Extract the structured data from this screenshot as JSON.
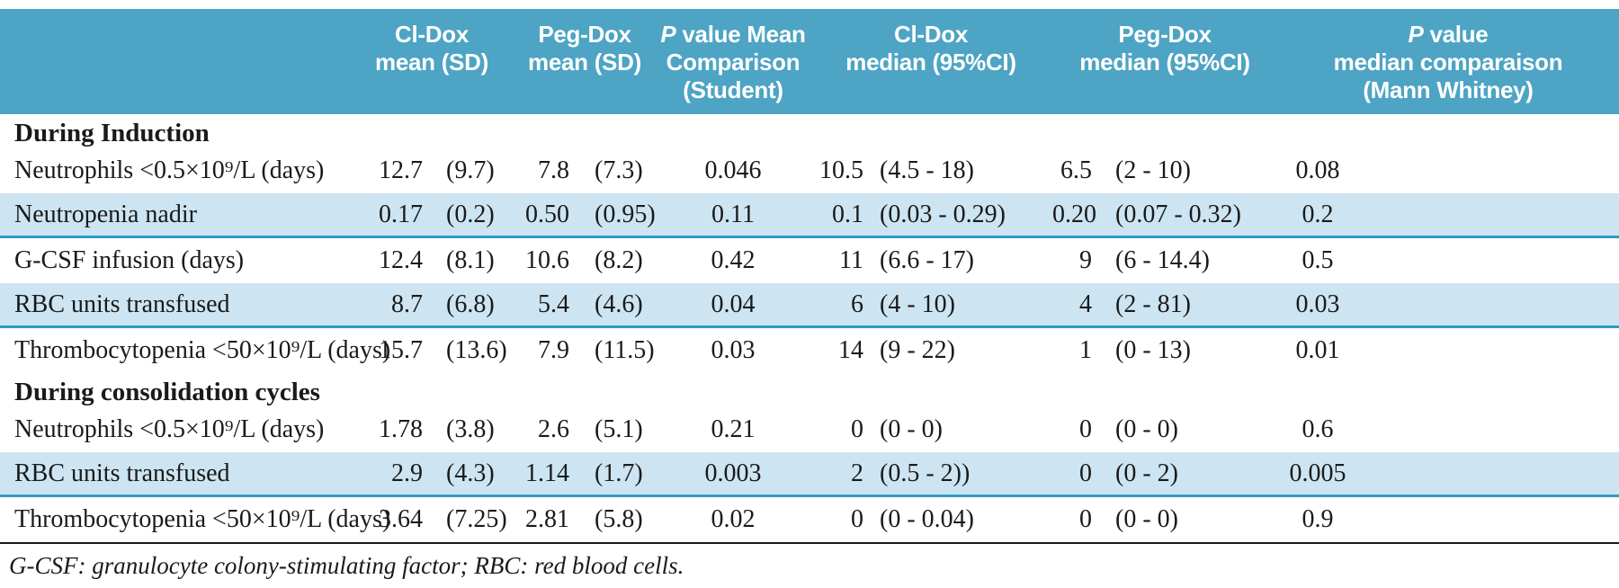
{
  "colors": {
    "header_bg": "#4da4c4",
    "header_text": "#ffffff",
    "shaded_row_bg": "#cde5f2",
    "shaded_row_border": "#2d9cc6",
    "body_text": "#1a1a1a"
  },
  "table": {
    "columns": {
      "cl_dox_mean": {
        "line1": "Cl-Dox",
        "line2": "mean (SD)"
      },
      "peg_dox_mean": {
        "line1": "Peg-Dox",
        "line2": "mean (SD)"
      },
      "p_mean": {
        "p": "P",
        "rest1": " value Mean",
        "line2": "Comparison",
        "line3": "(Student)"
      },
      "cl_dox_median": {
        "line1": "Cl-Dox",
        "line2": "median (95%CI)"
      },
      "peg_dox_median": {
        "line1": "Peg-Dox",
        "line2": "median (95%CI)"
      },
      "p_median": {
        "p": "P",
        "rest1": " value",
        "line2": "median comparaison",
        "line3": "(Mann Whitney)"
      }
    },
    "rows": [
      {
        "type": "section",
        "label": "During Induction"
      },
      {
        "type": "data",
        "shaded": false,
        "label": "Neutrophils <0.5×10⁹/L (days)",
        "cl_mean": "12.7",
        "cl_sd": "(9.7)",
        "peg_mean": "7.8",
        "peg_sd": "(7.3)",
        "p_mean": "0.046",
        "cl_median": "10.5",
        "cl_ci": "(4.5 - 18)",
        "peg_median": "6.5",
        "peg_ci": "(2 - 10)",
        "p_median": "0.08"
      },
      {
        "type": "data",
        "shaded": true,
        "label": "Neutropenia nadir",
        "cl_mean": "0.17",
        "cl_sd": "(0.2)",
        "peg_mean": "0.50",
        "peg_sd": "(0.95)",
        "p_mean": "0.11",
        "cl_median": "0.1",
        "cl_ci": "(0.03 - 0.29)",
        "peg_median": "0.20",
        "peg_ci": "(0.07 - 0.32)",
        "p_median": "0.2"
      },
      {
        "type": "data",
        "shaded": false,
        "label": "G-CSF infusion (days)",
        "cl_mean": "12.4",
        "cl_sd": "(8.1)",
        "peg_mean": "10.6",
        "peg_sd": "(8.2)",
        "p_mean": "0.42",
        "cl_median": "11",
        "cl_ci": "(6.6 - 17)",
        "peg_median": "9",
        "peg_ci": "(6 - 14.4)",
        "p_median": "0.5"
      },
      {
        "type": "data",
        "shaded": true,
        "label": "RBC units transfused",
        "cl_mean": "8.7",
        "cl_sd": "(6.8)",
        "peg_mean": "5.4",
        "peg_sd": "(4.6)",
        "p_mean": "0.04",
        "cl_median": "6",
        "cl_ci": "(4 - 10)",
        "peg_median": "4",
        "peg_ci": "(2 - 81)",
        "p_median": "0.03"
      },
      {
        "type": "data",
        "shaded": false,
        "label": "Thrombocytopenia <50×10⁹/L (days)",
        "cl_mean": "15.7",
        "cl_sd": "(13.6)",
        "peg_mean": "7.9",
        "peg_sd": "(11.5)",
        "p_mean": "0.03",
        "cl_median": "14",
        "cl_ci": "(9 - 22)",
        "peg_median": "1",
        "peg_ci": "(0 - 13)",
        "p_median": "0.01"
      },
      {
        "type": "section",
        "label": "During consolidation cycles"
      },
      {
        "type": "data",
        "shaded": false,
        "label": "Neutrophils <0.5×10⁹/L (days)",
        "cl_mean": "1.78",
        "cl_sd": "(3.8)",
        "peg_mean": "2.6",
        "peg_sd": "(5.1)",
        "p_mean": "0.21",
        "cl_median": "0",
        "cl_ci": "(0 - 0)",
        "peg_median": "0",
        "peg_ci": "(0 - 0)",
        "p_median": "0.6"
      },
      {
        "type": "data",
        "shaded": true,
        "label": "RBC units transfused",
        "cl_mean": "2.9",
        "cl_sd": "(4.3)",
        "peg_mean": "1.14",
        "peg_sd": "(1.7)",
        "p_mean": "0.003",
        "cl_median": "2",
        "cl_ci": "(0.5 - 2))",
        "peg_median": "0",
        "peg_ci": "(0 - 2)",
        "p_median": "0.005"
      },
      {
        "type": "data",
        "shaded": false,
        "label": "Thrombocytopenia <50×10⁹/L (days)",
        "cl_mean": "3.64",
        "cl_sd": "(7.25)",
        "peg_mean": "2.81",
        "peg_sd": "(5.8)",
        "p_mean": "0.02",
        "cl_median": "0",
        "cl_ci": "(0 - 0.04)",
        "peg_median": "0",
        "peg_ci": "(0 - 0)",
        "p_median": "0.9"
      }
    ],
    "footnote": "G-CSF: granulocyte colony-stimulating factor; RBC: red blood cells."
  }
}
